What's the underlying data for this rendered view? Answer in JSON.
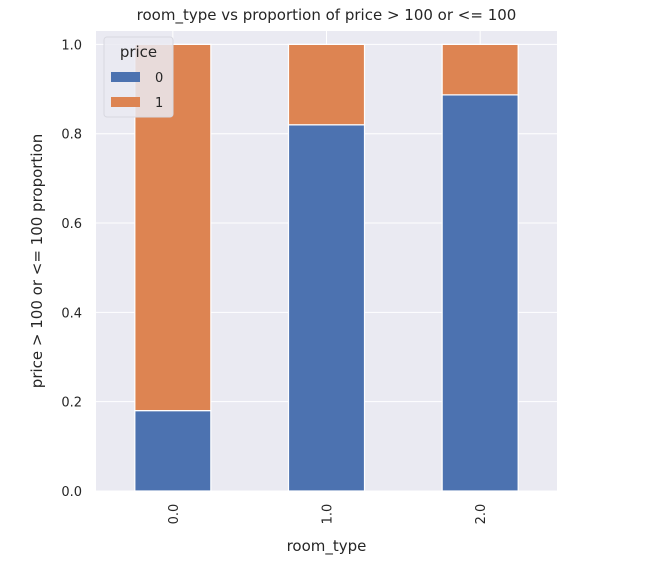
{
  "chart_data": {
    "type": "bar",
    "stacked": true,
    "title": "room_type vs proportion of price > 100 or <= 100",
    "xlabel": "room_type",
    "ylabel": "price > 100 or <= 100 proportion",
    "categories": [
      "0.0",
      "1.0",
      "2.0"
    ],
    "series": [
      {
        "name": "0",
        "values": [
          0.18,
          0.82,
          0.887
        ],
        "color": "#4c72b0"
      },
      {
        "name": "1",
        "values": [
          0.82,
          0.18,
          0.113
        ],
        "color": "#dd8452"
      }
    ],
    "ylim": [
      0,
      1.03
    ],
    "yticks": [
      0.0,
      0.2,
      0.4,
      0.6,
      0.8,
      1.0
    ],
    "ytick_labels": [
      "0.0",
      "0.2",
      "0.4",
      "0.6",
      "0.8",
      "1.0"
    ],
    "grid": true,
    "legend": {
      "title": "price",
      "placement": "top-left"
    },
    "style": {
      "background": "#eaeaf2",
      "grid_color": "#ffffff"
    }
  }
}
